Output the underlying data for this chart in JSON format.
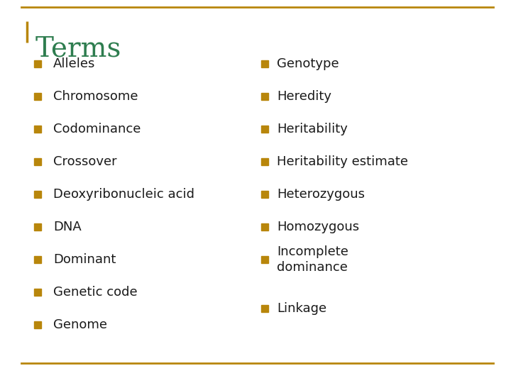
{
  "title": "Terms",
  "title_color": "#2E7D4F",
  "title_fontsize": 28,
  "background_color": "#FFFFFF",
  "bullet_color": "#B8860B",
  "text_color": "#1a1a1a",
  "text_fontsize": 13,
  "border_color": "#B8860B",
  "left_items": [
    "Alleles",
    "Chromosome",
    "Codominance",
    "Crossover",
    "Deoxyribonucleic acid",
    "DNA",
    "Dominant",
    "Genetic code",
    "Genome"
  ],
  "right_items": [
    "Genotype",
    "Heredity",
    "Heritability",
    "Heritability estimate",
    "Heterozygous",
    "Homozygous",
    "Incomplete\ndominance",
    "Linkage"
  ]
}
